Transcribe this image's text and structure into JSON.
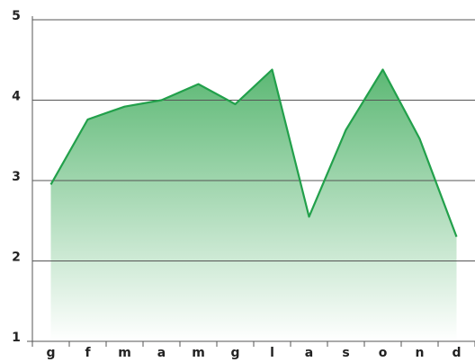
{
  "chart_data": {
    "type": "area",
    "categories": [
      "g",
      "f",
      "m",
      "a",
      "m",
      "g",
      "l",
      "a",
      "s",
      "o",
      "n",
      "d"
    ],
    "values": [
      2.95,
      3.76,
      3.92,
      4.0,
      4.2,
      3.95,
      4.38,
      2.55,
      3.63,
      4.38,
      3.52,
      2.3
    ],
    "color": "#22a04b",
    "ylim": [
      1,
      5
    ],
    "yticks": [
      1,
      2,
      3,
      4,
      5
    ],
    "grid": true
  }
}
